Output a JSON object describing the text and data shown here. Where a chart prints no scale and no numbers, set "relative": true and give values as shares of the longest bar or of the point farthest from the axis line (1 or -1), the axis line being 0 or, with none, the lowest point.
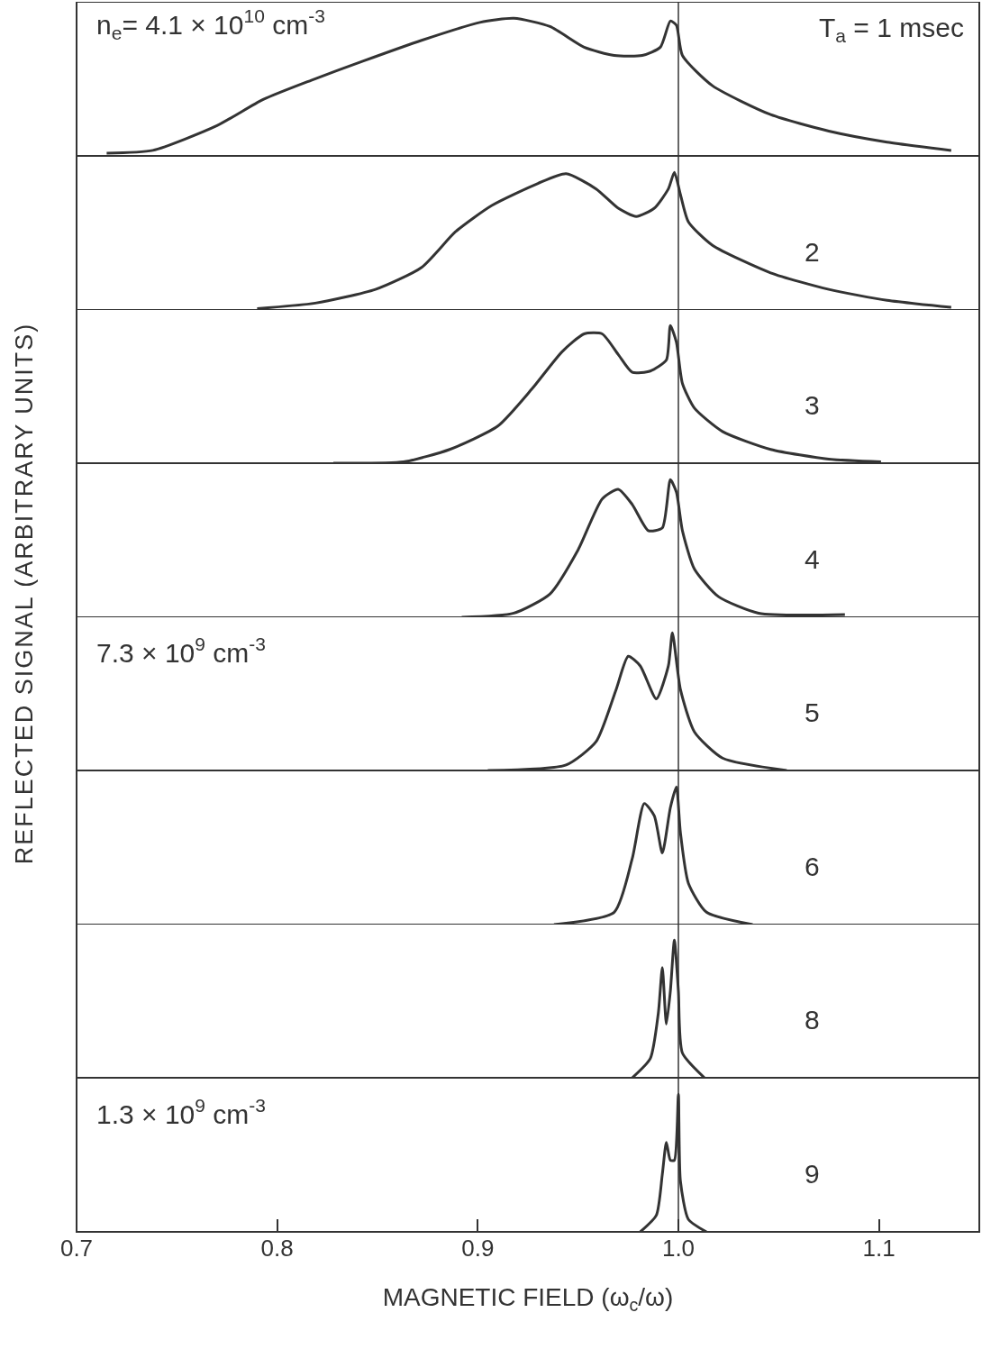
{
  "chart_data": [
    {
      "type": "line",
      "relative": true,
      "xlim": [
        0.7,
        1.15
      ],
      "tick_labels": false,
      "annotations": [
        "n$_{e}$= 4.1 × 10$^{10}$ cm$^{-3}$",
        "T$_{a}$ = 1 msec"
      ],
      "ref_lines": [
        {
          "axis": "x",
          "value": 1.0
        }
      ],
      "series": [
        {
          "color": "#333333",
          "x": [
            0.715,
            0.738,
            0.77,
            0.793,
            0.817,
            0.843,
            0.872,
            0.901,
            0.918,
            0.936,
            0.953,
            0.968,
            0.982,
            0.991,
            0.996,
            0.999,
            1.002,
            1.017,
            1.046,
            1.075,
            1.104,
            1.136
          ],
          "values": [
            0.02,
            0.04,
            0.22,
            0.41,
            0.55,
            0.69,
            0.84,
            0.97,
            1,
            0.94,
            0.79,
            0.73,
            0.73,
            0.79,
            0.98,
            0.95,
            0.73,
            0.51,
            0.3,
            0.18,
            0.1,
            0.04
          ]
        }
      ]
    },
    {
      "type": "line",
      "relative": true,
      "xlim": [
        0.7,
        1.15
      ],
      "tick_labels": false,
      "annotations": [
        "2"
      ],
      "ref_lines": [
        {
          "axis": "x",
          "value": 1.0
        }
      ],
      "series": [
        {
          "color": "#333333",
          "x": [
            0.79,
            0.819,
            0.849,
            0.872,
            0.889,
            0.907,
            0.93,
            0.944,
            0.959,
            0.97,
            0.979,
            0.988,
            0.995,
            0.998,
            1.001,
            1.005,
            1.017,
            1.046,
            1.075,
            1.104,
            1.136
          ],
          "values": [
            0.01,
            0.05,
            0.15,
            0.31,
            0.57,
            0.76,
            0.92,
            0.99,
            0.88,
            0.74,
            0.68,
            0.74,
            0.88,
            1,
            0.84,
            0.64,
            0.47,
            0.27,
            0.15,
            0.07,
            0.02
          ]
        }
      ]
    },
    {
      "type": "line",
      "relative": true,
      "xlim": [
        0.7,
        1.15
      ],
      "tick_labels": false,
      "annotations": [
        "3"
      ],
      "ref_lines": [
        {
          "axis": "x",
          "value": 1.0
        }
      ],
      "series": [
        {
          "color": "#333333",
          "x": [
            0.828,
            0.863,
            0.886,
            0.91,
            0.927,
            0.942,
            0.953,
            0.962,
            0.97,
            0.977,
            0.986,
            0.994,
            0.996,
            0.999,
            1.002,
            1.008,
            1.022,
            1.046,
            1.075,
            1.101
          ],
          "values": [
            0,
            0.01,
            0.1,
            0.27,
            0.54,
            0.81,
            0.94,
            0.94,
            0.79,
            0.66,
            0.67,
            0.75,
            1,
            0.88,
            0.58,
            0.4,
            0.23,
            0.1,
            0.03,
            0.01
          ]
        }
      ]
    },
    {
      "type": "line",
      "relative": true,
      "xlim": [
        0.7,
        1.15
      ],
      "tick_labels": false,
      "ylabel": "REFLECTED SIGNAL (ARBITRARY UNITS)",
      "annotations": [
        "4"
      ],
      "ref_lines": [
        {
          "axis": "x",
          "value": 1.0
        }
      ],
      "series": [
        {
          "color": "#333333",
          "x": [
            0.892,
            0.918,
            0.936,
            0.95,
            0.962,
            0.97,
            0.977,
            0.985,
            0.992,
            0.996,
            0.999,
            1.002,
            1.008,
            1.02,
            1.04,
            1.083
          ],
          "values": [
            0,
            0.03,
            0.17,
            0.49,
            0.86,
            0.93,
            0.82,
            0.63,
            0.65,
            1,
            0.91,
            0.63,
            0.35,
            0.15,
            0.03,
            0.02
          ]
        }
      ]
    },
    {
      "type": "line",
      "relative": true,
      "xlim": [
        0.7,
        1.15
      ],
      "tick_labels": false,
      "annotations": [
        "7.3 × 10$^{9}$ cm$^{-3}$",
        "5"
      ],
      "ref_lines": [
        {
          "axis": "x",
          "value": 1.0
        }
      ],
      "series": [
        {
          "color": "#333333",
          "x": [
            0.905,
            0.944,
            0.959,
            0.969,
            0.975,
            0.981,
            0.989,
            0.995,
            0.997,
            1.001,
            1.008,
            1.022,
            1.054
          ],
          "values": [
            0,
            0.04,
            0.21,
            0.59,
            0.83,
            0.76,
            0.52,
            0.76,
            1,
            0.59,
            0.28,
            0.09,
            0
          ]
        }
      ]
    },
    {
      "type": "line",
      "relative": true,
      "xlim": [
        0.7,
        1.15
      ],
      "tick_labels": false,
      "annotations": [
        "6"
      ],
      "ref_lines": [
        {
          "axis": "x",
          "value": 1.0
        }
      ],
      "series": [
        {
          "color": "#333333",
          "x": [
            0.938,
            0.968,
            0.977,
            0.983,
            0.988,
            0.992,
            0.996,
            0.999,
            1.001,
            1.005,
            1.014,
            1.037
          ],
          "values": [
            0,
            0.09,
            0.48,
            0.88,
            0.79,
            0.52,
            0.85,
            1,
            0.67,
            0.3,
            0.09,
            0
          ]
        }
      ]
    },
    {
      "type": "line",
      "relative": true,
      "xlim": [
        0.7,
        1.15
      ],
      "tick_labels": false,
      "annotations": [
        "8"
      ],
      "ref_lines": [
        {
          "axis": "x",
          "value": 1.0
        }
      ],
      "series": [
        {
          "color": "#333333",
          "x": [
            0.977,
            0.986,
            0.99,
            0.992,
            0.994,
            0.996,
            0.998,
            1.0,
            1.002,
            1.013
          ],
          "values": [
            0,
            0.14,
            0.47,
            0.8,
            0.39,
            0.63,
            1,
            0.63,
            0.18,
            0
          ]
        }
      ]
    },
    {
      "type": "line",
      "relative": true,
      "xlim": [
        0.7,
        1.15
      ],
      "tick_labels": "x",
      "xticks": [
        0.7,
        0.8,
        0.9,
        {
          "value": 1.0,
          "label": "1.0"
        },
        1.1
      ],
      "xlabel": "MAGNETIC FIELD (ω$_{c}$/ω)",
      "annotations": [
        "1.3 × 10$^{9}$ cm$^{-3}$",
        "9"
      ],
      "ref_lines": [
        {
          "axis": "x",
          "value": 1.0
        }
      ],
      "series": [
        {
          "color": "#333333",
          "x": [
            0.981,
            0.989,
            0.992,
            0.994,
            0.996,
            0.998,
            1.0,
            1.001,
            1.005,
            1.014
          ],
          "values": [
            0,
            0.12,
            0.42,
            0.65,
            0.52,
            0.52,
            1,
            0.37,
            0.09,
            0
          ]
        }
      ]
    }
  ]
}
